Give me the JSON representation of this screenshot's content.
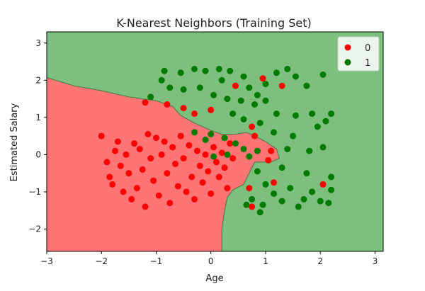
{
  "chart_data": {
    "type": "scatter",
    "title": "K-Nearest Neighbors (Training Set)",
    "xlabel": "Age",
    "ylabel": "Estimated Salary",
    "xlim": [
      -3,
      3.15
    ],
    "ylim": [
      -2.6,
      3.3
    ],
    "x_ticks": [
      -3,
      -2,
      -1,
      0,
      1,
      2,
      3
    ],
    "y_ticks": [
      -2,
      -1,
      0,
      1,
      2,
      3
    ],
    "grid": false,
    "legend_position": "top-right",
    "colors": {
      "class_0": "#ff0000",
      "class_1": "#007a00",
      "region_0": "#ff7575",
      "region_1": "#7dbf7d"
    },
    "decision_boundary": [
      [
        -3,
        2.07
      ],
      [
        -2.5,
        1.85
      ],
      [
        -2.0,
        1.72
      ],
      [
        -1.5,
        1.55
      ],
      [
        -1.0,
        1.45
      ],
      [
        -0.7,
        1.3
      ],
      [
        -0.55,
        1.05
      ],
      [
        -0.3,
        0.85
      ],
      [
        0.0,
        0.65
      ],
      [
        0.2,
        0.55
      ],
      [
        0.45,
        0.55
      ],
      [
        0.65,
        0.6
      ],
      [
        0.8,
        0.5
      ],
      [
        1.0,
        0.35
      ],
      [
        1.2,
        0.15
      ],
      [
        1.25,
        -0.1
      ],
      [
        1.1,
        -0.2
      ],
      [
        0.8,
        -0.2
      ],
      [
        0.7,
        -0.5
      ],
      [
        0.6,
        -0.8
      ],
      [
        0.4,
        -0.95
      ],
      [
        0.3,
        -1.15
      ],
      [
        0.25,
        -1.5
      ],
      [
        0.2,
        -2.0
      ],
      [
        0.2,
        -2.6
      ]
    ],
    "series": [
      {
        "name": "0",
        "points": [
          [
            -2.0,
            0.5
          ],
          [
            -1.9,
            -0.2
          ],
          [
            -1.85,
            -0.6
          ],
          [
            -1.8,
            -0.8
          ],
          [
            -1.75,
            0.1
          ],
          [
            -1.7,
            0.35
          ],
          [
            -1.65,
            -0.3
          ],
          [
            -1.6,
            -1.0
          ],
          [
            -1.55,
            0.0
          ],
          [
            -1.5,
            -0.5
          ],
          [
            -1.45,
            -1.2
          ],
          [
            -1.4,
            0.3
          ],
          [
            -1.35,
            -0.9
          ],
          [
            -1.3,
            0.15
          ],
          [
            -1.25,
            -0.4
          ],
          [
            -1.2,
            -1.4
          ],
          [
            -1.15,
            0.55
          ],
          [
            -1.1,
            -0.1
          ],
          [
            -1.05,
            -0.7
          ],
          [
            -1.0,
            0.45
          ],
          [
            -0.95,
            -1.1
          ],
          [
            -0.9,
            0.0
          ],
          [
            -0.85,
            0.35
          ],
          [
            -0.8,
            -0.5
          ],
          [
            -0.75,
            -1.3
          ],
          [
            -0.7,
            0.2
          ],
          [
            -0.65,
            -0.25
          ],
          [
            -0.6,
            -0.85
          ],
          [
            -0.55,
            0.5
          ],
          [
            -0.5,
            -0.1
          ],
          [
            -0.45,
            -1.0
          ],
          [
            -0.4,
            0.25
          ],
          [
            -0.35,
            -0.6
          ],
          [
            -0.3,
            -1.2
          ],
          [
            -0.25,
            0.1
          ],
          [
            -0.2,
            -0.3
          ],
          [
            -0.15,
            -0.75
          ],
          [
            -0.1,
            0.0
          ],
          [
            -0.05,
            -0.45
          ],
          [
            0.0,
            -1.05
          ],
          [
            0.05,
            0.2
          ],
          [
            0.1,
            -0.2
          ],
          [
            0.15,
            -0.6
          ],
          [
            0.2,
            0.05
          ],
          [
            0.25,
            -0.35
          ],
          [
            0.3,
            -0.9
          ],
          [
            0.35,
            0.3
          ],
          [
            0.4,
            -0.1
          ],
          [
            -1.2,
            1.4
          ],
          [
            -0.8,
            1.35
          ],
          [
            -0.5,
            1.25
          ],
          [
            -0.3,
            1.1
          ],
          [
            0.0,
            1.2
          ],
          [
            0.45,
            1.85
          ],
          [
            0.95,
            2.05
          ],
          [
            1.3,
            1.85
          ],
          [
            0.75,
            0.75
          ],
          [
            0.8,
            0.5
          ],
          [
            1.1,
            0.1
          ],
          [
            1.05,
            -0.15
          ],
          [
            0.7,
            -0.9
          ],
          [
            0.75,
            -1.4
          ],
          [
            1.15,
            -0.75
          ],
          [
            2.05,
            -0.8
          ]
        ]
      },
      {
        "name": "1",
        "points": [
          [
            -0.85,
            2.25
          ],
          [
            -0.55,
            2.2
          ],
          [
            -0.3,
            2.3
          ],
          [
            -0.1,
            2.25
          ],
          [
            0.15,
            2.3
          ],
          [
            0.35,
            2.25
          ],
          [
            -1.1,
            1.55
          ],
          [
            -0.75,
            1.8
          ],
          [
            -0.5,
            1.75
          ],
          [
            -0.2,
            1.8
          ],
          [
            0.05,
            1.6
          ],
          [
            0.3,
            1.5
          ],
          [
            0.55,
            1.45
          ],
          [
            -0.9,
            2.0
          ],
          [
            0.2,
            2.0
          ],
          [
            0.6,
            2.1
          ],
          [
            0.7,
            1.8
          ],
          [
            0.85,
            1.6
          ],
          [
            1.0,
            1.9
          ],
          [
            1.2,
            2.2
          ],
          [
            1.4,
            2.3
          ],
          [
            1.55,
            2.1
          ],
          [
            1.75,
            1.85
          ],
          [
            2.05,
            2.15
          ],
          [
            0.8,
            1.35
          ],
          [
            1.0,
            1.45
          ],
          [
            1.2,
            1.1
          ],
          [
            1.55,
            1.05
          ],
          [
            1.85,
            1.1
          ],
          [
            2.1,
            0.9
          ],
          [
            2.2,
            1.1
          ],
          [
            1.95,
            0.75
          ],
          [
            0.4,
            1.1
          ],
          [
            0.6,
            0.95
          ],
          [
            0.9,
            0.85
          ],
          [
            1.15,
            0.6
          ],
          [
            1.5,
            0.5
          ],
          [
            1.4,
            0.15
          ],
          [
            1.8,
            0.1
          ],
          [
            2.05,
            0.2
          ],
          [
            -0.3,
            0.6
          ],
          [
            0.0,
            0.55
          ],
          [
            0.25,
            0.45
          ],
          [
            0.45,
            0.3
          ],
          [
            0.6,
            0.15
          ],
          [
            0.7,
            -0.05
          ],
          [
            0.85,
            0.1
          ],
          [
            1.3,
            -0.35
          ],
          [
            1.75,
            -0.5
          ],
          [
            2.2,
            -0.6
          ],
          [
            0.85,
            -0.45
          ],
          [
            1.0,
            -0.8
          ],
          [
            1.15,
            -1.05
          ],
          [
            0.75,
            -1.2
          ],
          [
            0.95,
            -1.35
          ],
          [
            1.3,
            -1.25
          ],
          [
            1.6,
            -1.4
          ],
          [
            1.85,
            -1.0
          ],
          [
            2.0,
            -1.25
          ],
          [
            2.2,
            -0.95
          ],
          [
            0.65,
            -1.35
          ],
          [
            0.9,
            -1.55
          ],
          [
            1.45,
            -0.9
          ],
          [
            1.7,
            -1.2
          ],
          [
            2.15,
            -1.3
          ],
          [
            0.3,
            0.0
          ],
          [
            0.05,
            -0.05
          ],
          [
            -0.1,
            0.4
          ]
        ]
      }
    ]
  }
}
